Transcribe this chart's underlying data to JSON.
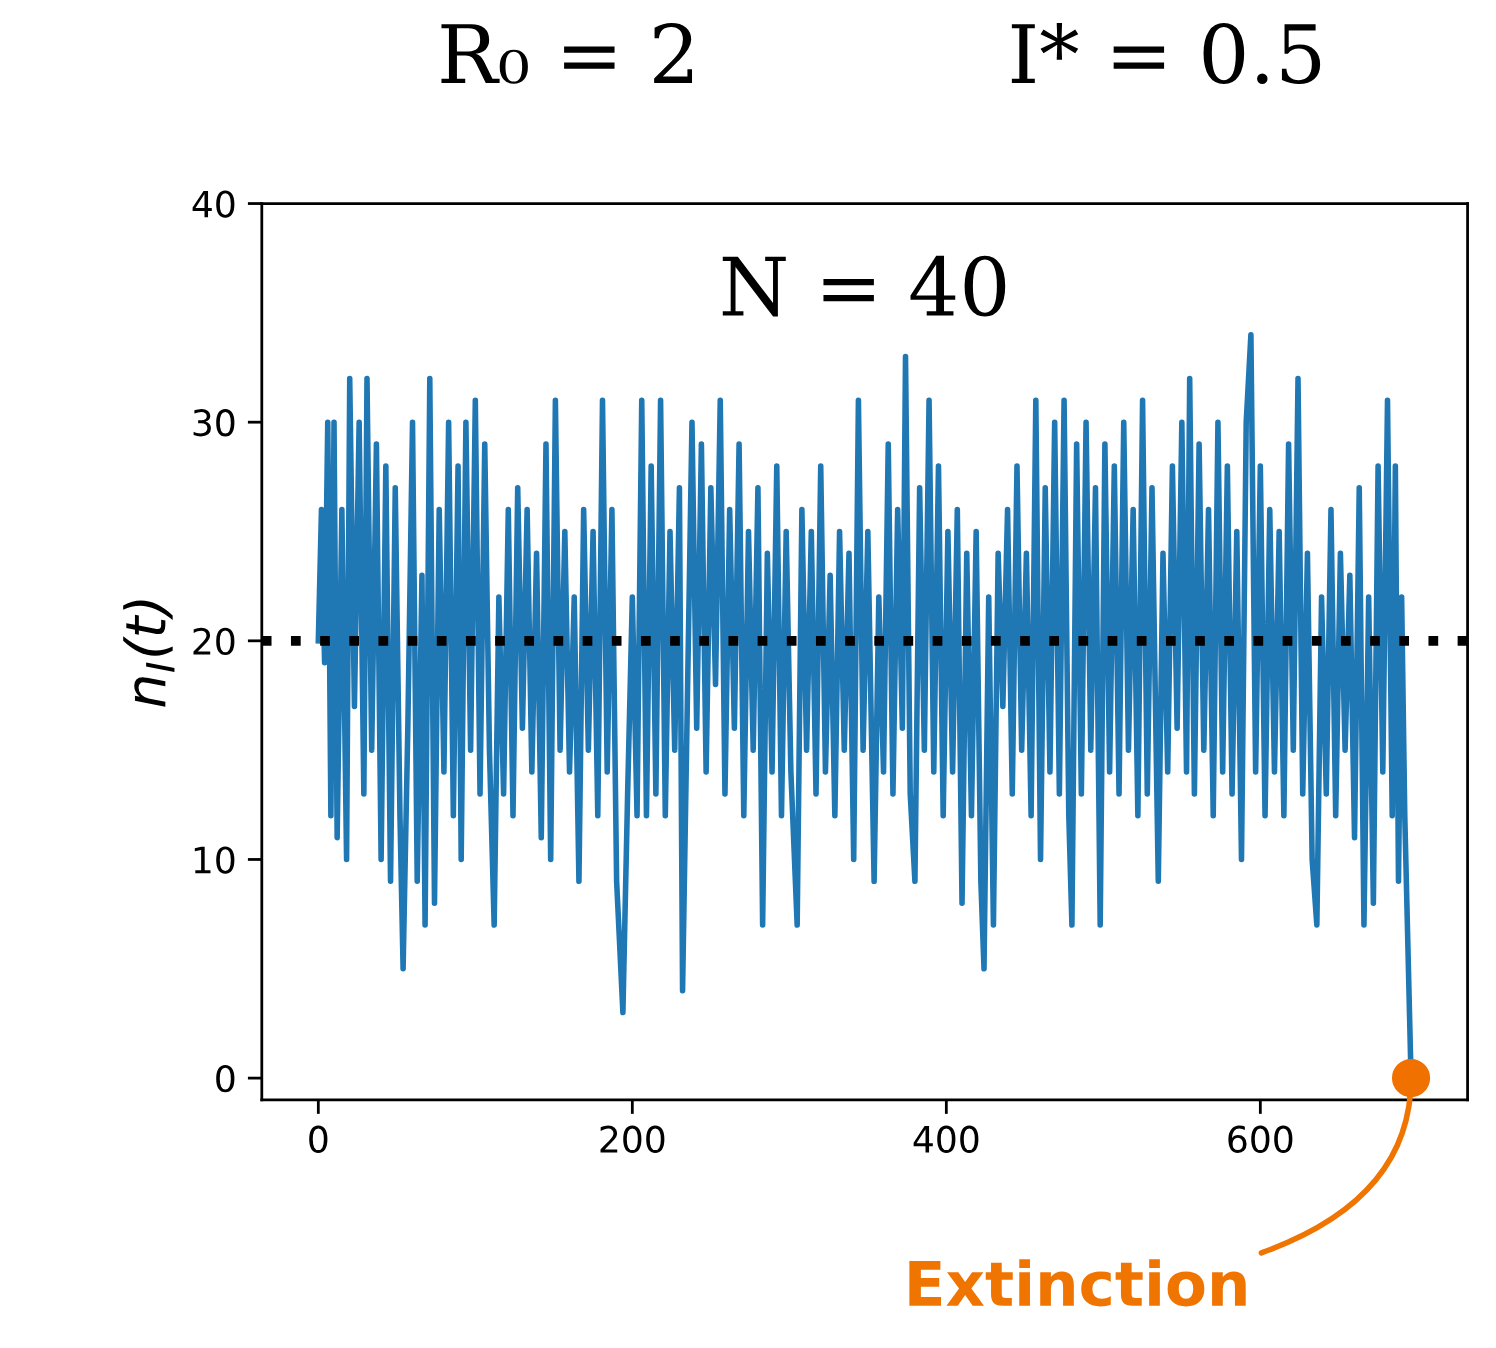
{
  "chart_data": {
    "type": "line",
    "ylabel": "n$_{I}$(t)",
    "xlim": [
      -36,
      732
    ],
    "ylim": [
      -1,
      40
    ],
    "xticks": [
      0,
      200,
      400,
      600
    ],
    "yticks": [
      0,
      10,
      20,
      30,
      40
    ],
    "grid": false,
    "annotations": [
      "R₀ = 2",
      "I* = 0.5",
      "N = 40",
      {
        "text": "Extinction",
        "x": 696,
        "y": 0
      }
    ],
    "ref_lines": [
      {
        "axis": "y",
        "value": 20,
        "label": null,
        "color": "#000000",
        "line_style": "dotted"
      }
    ],
    "series": [
      {
        "color": "#1f77b4",
        "x": [
          0,
          2,
          4,
          6,
          8,
          10,
          12,
          15,
          18,
          20,
          23,
          26,
          29,
          31,
          34,
          37,
          40,
          43,
          46,
          49,
          52,
          54,
          57,
          60,
          63,
          66,
          68,
          71,
          74,
          77,
          80,
          83,
          86,
          89,
          91,
          94,
          97,
          100,
          103,
          106,
          109,
          112,
          115,
          118,
          121,
          124,
          127,
          130,
          133,
          136,
          139,
          142,
          145,
          148,
          151,
          154,
          157,
          160,
          163,
          166,
          169,
          172,
          175,
          178,
          181,
          184,
          187,
          190,
          194,
          197,
          200,
          203,
          206,
          209,
          212,
          215,
          218,
          221,
          224,
          227,
          230,
          232,
          235,
          238,
          241,
          244,
          247,
          250,
          253,
          256,
          259,
          262,
          265,
          268,
          271,
          274,
          277,
          280,
          283,
          286,
          289,
          292,
          295,
          298,
          301,
          305,
          308,
          311,
          314,
          317,
          320,
          323,
          326,
          329,
          332,
          335,
          338,
          341,
          344,
          347,
          350,
          354,
          357,
          360,
          363,
          366,
          369,
          372,
          374,
          377,
          380,
          383,
          386,
          389,
          392,
          395,
          398,
          401,
          404,
          407,
          410,
          413,
          416,
          419,
          422,
          424,
          427,
          430,
          433,
          436,
          439,
          442,
          445,
          448,
          451,
          454,
          457,
          460,
          463,
          466,
          469,
          472,
          475,
          478,
          480,
          483,
          486,
          489,
          492,
          495,
          498,
          501,
          504,
          507,
          510,
          513,
          516,
          519,
          522,
          525,
          528,
          531,
          535,
          538,
          541,
          544,
          547,
          550,
          553,
          555,
          558,
          561,
          564,
          567,
          570,
          573,
          576,
          579,
          582,
          585,
          588,
          591,
          594,
          597,
          600,
          603,
          606,
          609,
          612,
          615,
          618,
          621,
          624,
          627,
          630,
          633,
          636,
          639,
          642,
          645,
          648,
          651,
          654,
          657,
          660,
          663,
          666,
          669,
          672,
          675,
          678,
          681,
          684,
          686,
          688,
          690,
          692,
          694,
          696
        ],
        "values": [
          20,
          26,
          19,
          30,
          12,
          30,
          11,
          26,
          10,
          32,
          17,
          30,
          13,
          32,
          15,
          29,
          10,
          28,
          9,
          27,
          12,
          5,
          16,
          30,
          9,
          23,
          7,
          32,
          8,
          26,
          14,
          30,
          12,
          28,
          10,
          30,
          15,
          31,
          13,
          29,
          15,
          7,
          22,
          13,
          26,
          12,
          27,
          16,
          26,
          14,
          24,
          11,
          29,
          10,
          31,
          15,
          25,
          14,
          22,
          9,
          26,
          15,
          25,
          12,
          31,
          14,
          26,
          9,
          3,
          13,
          22,
          12,
          31,
          12,
          28,
          13,
          31,
          12,
          25,
          15,
          27,
          4,
          17,
          30,
          16,
          29,
          14,
          27,
          18,
          31,
          13,
          26,
          16,
          29,
          12,
          25,
          15,
          27,
          7,
          24,
          14,
          28,
          12,
          25,
          14,
          7,
          26,
          15,
          25,
          13,
          28,
          14,
          23,
          12,
          25,
          15,
          24,
          10,
          31,
          15,
          25,
          9,
          22,
          14,
          29,
          13,
          26,
          16,
          33,
          13,
          9,
          27,
          15,
          31,
          14,
          28,
          12,
          25,
          14,
          26,
          8,
          24,
          12,
          25,
          9,
          5,
          22,
          7,
          24,
          17,
          26,
          13,
          28,
          15,
          24,
          12,
          31,
          10,
          27,
          14,
          30,
          13,
          31,
          12,
          7,
          29,
          13,
          30,
          15,
          27,
          7,
          29,
          14,
          28,
          13,
          30,
          15,
          26,
          12,
          31,
          13,
          27,
          9,
          24,
          14,
          28,
          16,
          30,
          14,
          32,
          13,
          29,
          15,
          26,
          12,
          30,
          14,
          28,
          13,
          25,
          10,
          30,
          34,
          14,
          28,
          12,
          26,
          14,
          25,
          12,
          29,
          15,
          32,
          13,
          24,
          10,
          7,
          22,
          13,
          26,
          12,
          24,
          15,
          23,
          11,
          27,
          7,
          22,
          8,
          28,
          14,
          31,
          12,
          28,
          9,
          22,
          12,
          6,
          0
        ]
      },
      {
        "type": "scatter",
        "color": "#f07000",
        "marker": "circle",
        "x": [
          696
        ],
        "values": [
          0
        ]
      }
    ]
  }
}
